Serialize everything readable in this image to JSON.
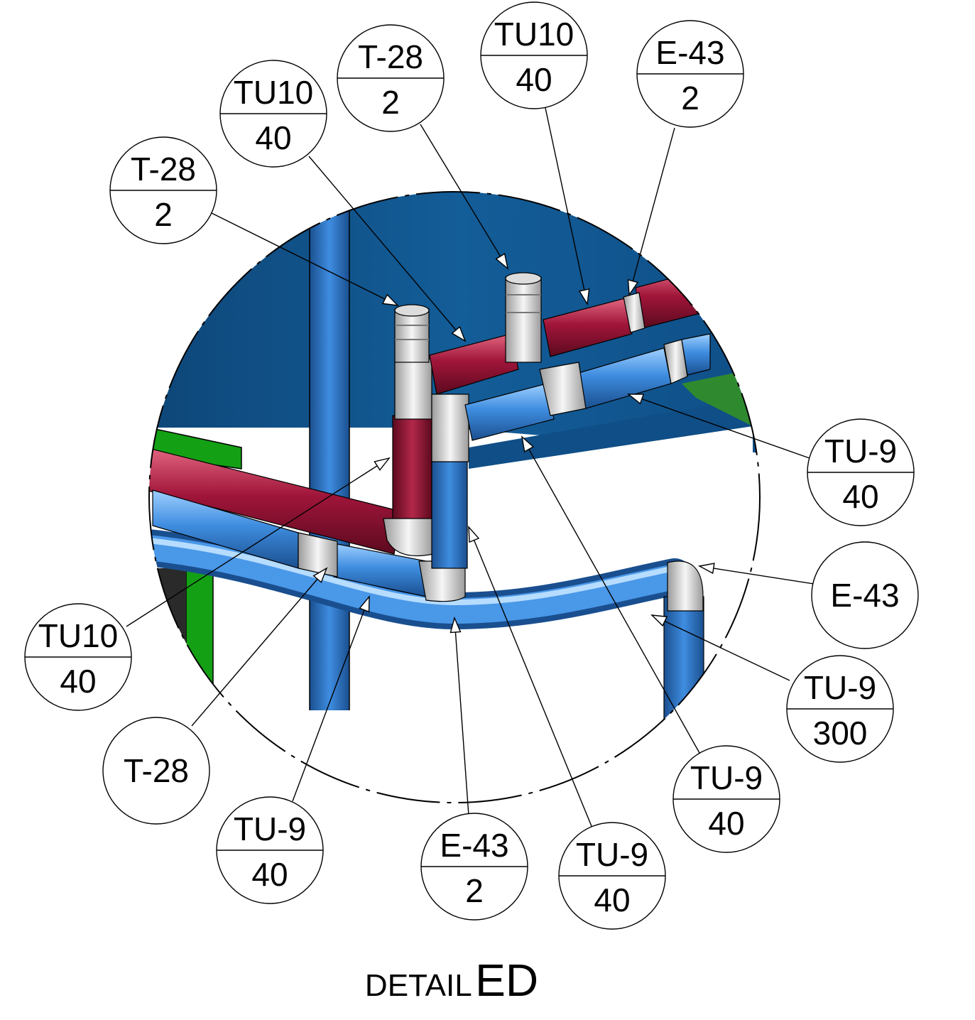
{
  "title": {
    "prefix": "DETAIL",
    "name": "ED"
  },
  "colors": {
    "background_tank": "#125a94",
    "pipe_blue": "#2f7fd0",
    "pipe_red": "#8e1230",
    "fitting": "#e4e4e4",
    "frame_green": "#12a012",
    "leader": "#000000"
  },
  "balloons": [
    {
      "id": "b1",
      "top": "T-28",
      "bottom": "2"
    },
    {
      "id": "b2",
      "top": "TU10",
      "bottom": "40"
    },
    {
      "id": "b3",
      "top": "T-28",
      "bottom": "2"
    },
    {
      "id": "b4",
      "top": "TU10",
      "bottom": "40"
    },
    {
      "id": "b5",
      "top": "E-43",
      "bottom": "2"
    },
    {
      "id": "b6",
      "top": "TU-9",
      "bottom": "40"
    },
    {
      "id": "b7",
      "top": "E-43",
      "bottom": ""
    },
    {
      "id": "b8",
      "top": "TU-9",
      "bottom": "300"
    },
    {
      "id": "b9",
      "top": "TU-9",
      "bottom": "40"
    },
    {
      "id": "b10",
      "top": "TU-9",
      "bottom": "40"
    },
    {
      "id": "b11",
      "top": "E-43",
      "bottom": "2"
    },
    {
      "id": "b12",
      "top": "TU-9",
      "bottom": "40"
    },
    {
      "id": "b13",
      "top": "T-28",
      "bottom": ""
    },
    {
      "id": "b14",
      "top": "TU10",
      "bottom": "40"
    }
  ]
}
